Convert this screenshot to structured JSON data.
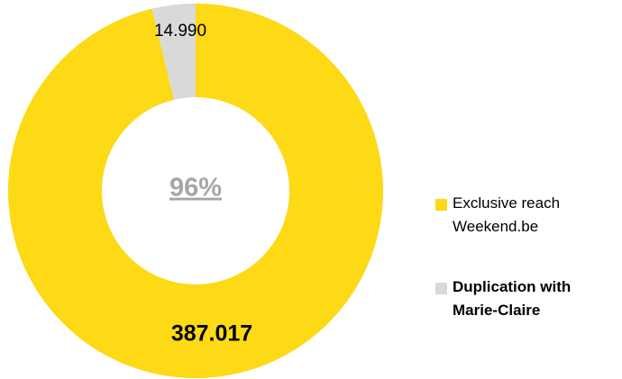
{
  "chart_data": {
    "type": "donut",
    "center_label": "96%",
    "categories": [
      "Exclusive reach Weekend.be",
      "Duplication with Marie-Claire"
    ],
    "values": [
      387017,
      14990
    ],
    "value_labels": [
      "387.017",
      "14.990"
    ],
    "colors": [
      "#fdd916",
      "#d9d9d9"
    ],
    "legend": "right"
  }
}
